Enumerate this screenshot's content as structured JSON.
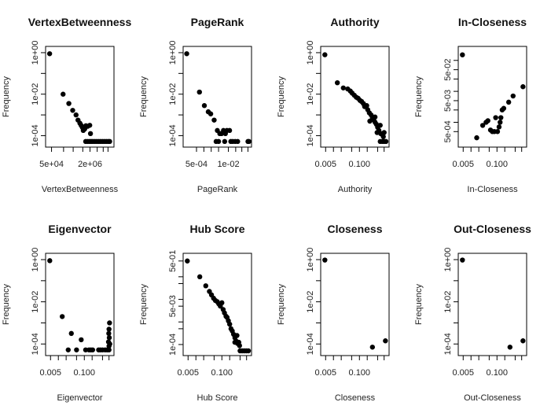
{
  "chart_data": [
    {
      "type": "scatter",
      "title": "VertexBetweenness",
      "xlabel": "VertexBetweenness",
      "ylabel": "Frequency",
      "xscale": "log",
      "yscale": "log",
      "xlim_log10": [
        4.55,
        7.2
      ],
      "ylim_log10": [
        -4.4,
        0.15
      ],
      "xticks": [
        {
          "v": 4.699,
          "label": "5e+04"
        },
        {
          "v": 6.301,
          "label": "2e+06"
        }
      ],
      "xminor_log10": [
        4.699,
        5.2,
        5.6,
        6.0,
        6.301,
        6.6,
        6.85,
        7.05
      ],
      "yticks": [
        {
          "v": 0,
          "label": "1e+00"
        },
        {
          "v": -1,
          "label": ""
        },
        {
          "v": -2,
          "label": "1e-02"
        },
        {
          "v": -3,
          "label": ""
        },
        {
          "v": -4,
          "label": "1e-04"
        }
      ],
      "points_log10": [
        [
          4.62,
          -0.05
        ],
        [
          5.18,
          -2.0
        ],
        [
          5.42,
          -2.45
        ],
        [
          5.58,
          -2.78
        ],
        [
          5.72,
          -3.0
        ],
        [
          5.8,
          -3.25
        ],
        [
          5.88,
          -3.4
        ],
        [
          5.93,
          -3.5
        ],
        [
          5.98,
          -3.6
        ],
        [
          6.02,
          -3.75
        ],
        [
          6.05,
          -3.62
        ],
        [
          6.08,
          -3.68
        ],
        [
          6.13,
          -3.52
        ],
        [
          6.2,
          -3.55
        ],
        [
          6.29,
          -3.5
        ],
        [
          6.32,
          -3.9
        ],
        [
          6.28,
          -4.28
        ],
        [
          6.35,
          -4.28
        ],
        [
          6.42,
          -4.28
        ],
        [
          6.5,
          -4.28
        ],
        [
          6.58,
          -4.28
        ],
        [
          6.66,
          -4.28
        ],
        [
          6.74,
          -4.28
        ],
        [
          6.82,
          -4.28
        ],
        [
          6.9,
          -4.28
        ],
        [
          6.98,
          -4.28
        ],
        [
          7.06,
          -4.28
        ],
        [
          7.12,
          -4.28
        ],
        [
          6.12,
          -4.28
        ],
        [
          6.2,
          -4.28
        ]
      ]
    },
    {
      "type": "scatter",
      "title": "PageRank",
      "xlabel": "PageRank",
      "ylabel": "Frequency",
      "xscale": "log",
      "yscale": "log",
      "xlim_log10": [
        -3.75,
        -1.15
      ],
      "ylim_log10": [
        -4.4,
        0.15
      ],
      "xticks": [
        {
          "v": -3.301,
          "label": "5e-04"
        },
        {
          "v": -2.0,
          "label": "1e-02"
        }
      ],
      "xminor_log10": [
        -3.301,
        -3.0,
        -2.7,
        -2.4,
        -2.0,
        -1.7,
        -1.45,
        -1.2
      ],
      "yticks": [
        {
          "v": 0,
          "label": "1e+00"
        },
        {
          "v": -1,
          "label": ""
        },
        {
          "v": -2,
          "label": "1e-02"
        },
        {
          "v": -3,
          "label": ""
        },
        {
          "v": -4,
          "label": "1e-04"
        }
      ],
      "points_log10": [
        [
          -3.7,
          -0.05
        ],
        [
          -3.18,
          -1.9
        ],
        [
          -2.98,
          -2.55
        ],
        [
          -2.82,
          -2.85
        ],
        [
          -2.72,
          -2.95
        ],
        [
          -2.58,
          -3.25
        ],
        [
          -2.45,
          -3.75
        ],
        [
          -2.35,
          -3.9
        ],
        [
          -2.28,
          -3.9
        ],
        [
          -2.2,
          -3.75
        ],
        [
          -2.12,
          -3.9
        ],
        [
          -2.06,
          -3.75
        ],
        [
          -1.95,
          -3.75
        ],
        [
          -2.5,
          -4.28
        ],
        [
          -2.4,
          -4.28
        ],
        [
          -2.15,
          -4.28
        ],
        [
          -1.9,
          -4.28
        ],
        [
          -1.82,
          -4.28
        ],
        [
          -1.72,
          -4.28
        ],
        [
          -1.62,
          -4.28
        ],
        [
          -1.2,
          -4.28
        ],
        [
          -1.16,
          -4.28
        ]
      ]
    },
    {
      "type": "scatter",
      "title": "Authority",
      "xlabel": "Authority",
      "ylabel": "Frequency",
      "xscale": "log",
      "yscale": "log",
      "xlim_log10": [
        -2.4,
        0.05
      ],
      "ylim_log10": [
        -4.4,
        0.15
      ],
      "xticks": [
        {
          "v": -2.301,
          "label": "0.005"
        },
        {
          "v": -1.0,
          "label": "0.100"
        }
      ],
      "xminor_log10": [
        -2.301,
        -2.0,
        -1.7,
        -1.3,
        -1.0,
        -0.7,
        -0.3,
        -0.05
      ],
      "yticks": [
        {
          "v": 0,
          "label": "1e+00"
        },
        {
          "v": -1,
          "label": ""
        },
        {
          "v": -2,
          "label": "1e-02"
        },
        {
          "v": -3,
          "label": ""
        },
        {
          "v": -4,
          "label": "1e-04"
        }
      ],
      "points_log10": [
        [
          -2.33,
          -0.1
        ],
        [
          -1.85,
          -1.45
        ],
        [
          -1.62,
          -1.7
        ],
        [
          -1.45,
          -1.75
        ],
        [
          -1.35,
          -1.85
        ],
        [
          -1.28,
          -1.95
        ],
        [
          -1.2,
          -2.05
        ],
        [
          -1.12,
          -2.15
        ],
        [
          -1.05,
          -2.2
        ],
        [
          -0.98,
          -2.3
        ],
        [
          -0.92,
          -2.35
        ],
        [
          -0.85,
          -2.45
        ],
        [
          -0.8,
          -2.6
        ],
        [
          -0.72,
          -2.55
        ],
        [
          -0.68,
          -2.75
        ],
        [
          -0.62,
          -2.9
        ],
        [
          -0.55,
          -3.0
        ],
        [
          -0.5,
          -3.15
        ],
        [
          -0.45,
          -3.25
        ],
        [
          -0.4,
          -3.35
        ],
        [
          -0.35,
          -3.45
        ],
        [
          -0.3,
          -3.6
        ],
        [
          -0.25,
          -3.75
        ],
        [
          -0.2,
          -3.5
        ],
        [
          -0.18,
          -3.9
        ],
        [
          -0.12,
          -3.95
        ],
        [
          -0.08,
          -4.05
        ],
        [
          -0.05,
          -3.85
        ],
        [
          -0.2,
          -4.28
        ],
        [
          -0.12,
          -4.28
        ],
        [
          -0.05,
          -4.28
        ],
        [
          0.02,
          -4.28
        ],
        [
          -0.6,
          -3.3
        ],
        [
          -0.4,
          -3.1
        ],
        [
          -0.32,
          -3.85
        ]
      ]
    },
    {
      "type": "scatter",
      "title": "In-Closeness",
      "xlabel": "In-Closeness",
      "ylabel": "Frequency",
      "xscale": "log",
      "yscale": "log",
      "xlim_log10": [
        -2.4,
        0.05
      ],
      "ylim_log10": [
        -3.7,
        -0.65
      ],
      "xticks": [
        {
          "v": -2.301,
          "label": "0.005"
        },
        {
          "v": -1.0,
          "label": "0.100"
        }
      ],
      "xminor_log10": [
        -2.301,
        -2.0,
        -1.7,
        -1.3,
        -1.0,
        -0.7,
        -0.3,
        -0.05
      ],
      "yticks": [
        {
          "v": -3.301,
          "label": "5e-04"
        },
        {
          "v": -3.0,
          "label": ""
        },
        {
          "v": -2.602,
          "label": ""
        },
        {
          "v": -2.301,
          "label": "5e-03"
        },
        {
          "v": -2.0,
          "label": ""
        },
        {
          "v": -1.602,
          "label": ""
        },
        {
          "v": -1.301,
          "label": "5e-02"
        },
        {
          "v": -1.0,
          "label": ""
        }
      ],
      "points_log10": [
        [
          -2.33,
          -0.82
        ],
        [
          -1.78,
          -3.5
        ],
        [
          -1.55,
          -3.1
        ],
        [
          -1.42,
          -3.0
        ],
        [
          -1.35,
          -2.95
        ],
        [
          -1.25,
          -3.25
        ],
        [
          -1.18,
          -3.3
        ],
        [
          -1.1,
          -3.3
        ],
        [
          -1.05,
          -2.85
        ],
        [
          -0.98,
          -3.3
        ],
        [
          -0.92,
          -3.15
        ],
        [
          -0.88,
          -3.0
        ],
        [
          -0.85,
          -2.85
        ],
        [
          -0.8,
          -2.6
        ],
        [
          -0.74,
          -2.55
        ],
        [
          -0.55,
          -2.35
        ],
        [
          -0.38,
          -2.15
        ],
        [
          0.0,
          -1.85
        ]
      ]
    },
    {
      "type": "scatter",
      "title": "Eigenvector",
      "xlabel": "Eigenvector",
      "ylabel": "Frequency",
      "xscale": "log",
      "yscale": "log",
      "xlim_log10": [
        -2.4,
        0.05
      ],
      "ylim_log10": [
        -4.4,
        0.15
      ],
      "xticks": [
        {
          "v": -2.301,
          "label": "0.005"
        },
        {
          "v": -1.0,
          "label": "0.100"
        }
      ],
      "xminor_log10": [
        -2.301,
        -2.0,
        -1.7,
        -1.3,
        -1.0,
        -0.7,
        -0.3,
        -0.05
      ],
      "yticks": [
        {
          "v": 0,
          "label": "1e+00"
        },
        {
          "v": -1,
          "label": ""
        },
        {
          "v": -2,
          "label": "1e-02"
        },
        {
          "v": -3,
          "label": ""
        },
        {
          "v": -4,
          "label": "1e-04"
        }
      ],
      "points_log10": [
        [
          -2.33,
          -0.05
        ],
        [
          -1.85,
          -2.7
        ],
        [
          -1.62,
          -4.28
        ],
        [
          -1.5,
          -3.5
        ],
        [
          -1.3,
          -4.28
        ],
        [
          -1.12,
          -3.8
        ],
        [
          -0.95,
          -4.28
        ],
        [
          -0.82,
          -4.28
        ],
        [
          -0.75,
          -4.28
        ],
        [
          -0.68,
          -4.28
        ],
        [
          -0.45,
          -4.28
        ],
        [
          -0.38,
          -4.28
        ],
        [
          -0.3,
          -4.28
        ],
        [
          -0.2,
          -4.28
        ],
        [
          -0.12,
          -4.28
        ],
        [
          -0.05,
          -4.28
        ],
        [
          -0.03,
          -3.0
        ],
        [
          -0.05,
          -3.3
        ],
        [
          -0.06,
          -3.5
        ],
        [
          -0.04,
          -3.7
        ],
        [
          -0.07,
          -3.9
        ],
        [
          -0.02,
          -4.0
        ],
        [
          -0.05,
          -4.1
        ]
      ]
    },
    {
      "type": "scatter",
      "title": "Hub Score",
      "xlabel": "Hub Score",
      "ylabel": "Frequency",
      "xscale": "log",
      "yscale": "log",
      "xlim_log10": [
        -2.4,
        0.05
      ],
      "ylim_log10": [
        -4.35,
        -0.1
      ],
      "xticks": [
        {
          "v": -2.301,
          "label": "0.005"
        },
        {
          "v": -1.0,
          "label": "0.100"
        }
      ],
      "xminor_log10": [
        -2.301,
        -2.0,
        -1.7,
        -1.3,
        -1.0,
        -0.7,
        -0.3,
        -0.05
      ],
      "yticks": [
        {
          "v": -4.0,
          "label": "1e-04"
        },
        {
          "v": -3.301,
          "label": ""
        },
        {
          "v": -3.0,
          "label": ""
        },
        {
          "v": -2.301,
          "label": "5e-03"
        },
        {
          "v": -2.0,
          "label": ""
        },
        {
          "v": -1.301,
          "label": ""
        },
        {
          "v": -1.0,
          "label": ""
        },
        {
          "v": -0.301,
          "label": "5e-01"
        }
      ],
      "points_log10": [
        [
          -2.33,
          -0.3
        ],
        [
          -1.85,
          -1.0
        ],
        [
          -1.62,
          -1.4
        ],
        [
          -1.48,
          -1.65
        ],
        [
          -1.4,
          -1.8
        ],
        [
          -1.32,
          -1.95
        ],
        [
          -1.25,
          -2.05
        ],
        [
          -1.18,
          -2.1
        ],
        [
          -1.12,
          -2.2
        ],
        [
          -1.06,
          -2.3
        ],
        [
          -1.0,
          -2.15
        ],
        [
          -0.95,
          -2.45
        ],
        [
          -0.9,
          -2.6
        ],
        [
          -0.84,
          -2.75
        ],
        [
          -0.8,
          -2.8
        ],
        [
          -0.75,
          -2.95
        ],
        [
          -0.7,
          -3.1
        ],
        [
          -0.65,
          -3.3
        ],
        [
          -0.6,
          -3.4
        ],
        [
          -0.55,
          -3.55
        ],
        [
          -0.5,
          -3.7
        ],
        [
          -0.45,
          -3.85
        ],
        [
          -0.42,
          -3.6
        ],
        [
          -0.4,
          -3.95
        ],
        [
          -0.35,
          -3.9
        ],
        [
          -0.32,
          -4.05
        ],
        [
          -0.3,
          -4.28
        ],
        [
          -0.22,
          -4.28
        ],
        [
          -0.14,
          -4.28
        ],
        [
          -0.06,
          -4.28
        ],
        [
          0.02,
          -4.28
        ],
        [
          -0.5,
          -3.9
        ]
      ]
    },
    {
      "type": "scatter",
      "title": "Closeness",
      "xlabel": "Closeness",
      "ylabel": "Frequency",
      "xscale": "log",
      "yscale": "log",
      "xlim_log10": [
        -2.4,
        0.05
      ],
      "ylim_log10": [
        -4.4,
        0.15
      ],
      "xticks": [
        {
          "v": -2.301,
          "label": "0.005"
        },
        {
          "v": -1.0,
          "label": "0.100"
        }
      ],
      "xminor_log10": [
        -2.301,
        -2.0,
        -1.7,
        -1.3,
        -1.0,
        -0.7,
        -0.3,
        -0.05
      ],
      "yticks": [
        {
          "v": 0,
          "label": "1e+00"
        },
        {
          "v": -1,
          "label": ""
        },
        {
          "v": -2,
          "label": "1e-02"
        },
        {
          "v": -3,
          "label": ""
        },
        {
          "v": -4,
          "label": "1e-04"
        }
      ],
      "points_log10": [
        [
          -2.33,
          -0.02
        ],
        [
          -0.5,
          -4.15
        ],
        [
          0.0,
          -3.85
        ]
      ]
    },
    {
      "type": "scatter",
      "title": "Out-Closeness",
      "xlabel": "Out-Closeness",
      "ylabel": "Frequency",
      "xscale": "log",
      "yscale": "log",
      "xlim_log10": [
        -2.4,
        0.05
      ],
      "ylim_log10": [
        -4.4,
        0.15
      ],
      "xticks": [
        {
          "v": -2.301,
          "label": "0.005"
        },
        {
          "v": -1.0,
          "label": "0.100"
        }
      ],
      "xminor_log10": [
        -2.301,
        -2.0,
        -1.7,
        -1.3,
        -1.0,
        -0.7,
        -0.3,
        -0.05
      ],
      "yticks": [
        {
          "v": 0,
          "label": "1e+00"
        },
        {
          "v": -1,
          "label": ""
        },
        {
          "v": -2,
          "label": "1e-02"
        },
        {
          "v": -3,
          "label": ""
        },
        {
          "v": -4,
          "label": "1e-04"
        }
      ],
      "points_log10": [
        [
          -2.33,
          -0.02
        ],
        [
          -0.5,
          -4.15
        ],
        [
          0.0,
          -3.85
        ]
      ]
    }
  ],
  "colors": {
    "point": "#000000",
    "axis": "#000000",
    "text": "#222222"
  }
}
